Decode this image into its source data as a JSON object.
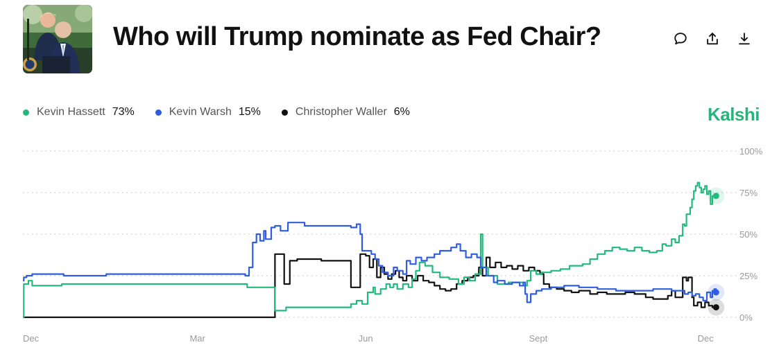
{
  "header": {
    "title": "Who will Trump nominate as Fed Chair?",
    "brand": "Kalshi",
    "actions": [
      {
        "name": "comment-icon"
      },
      {
        "name": "share-icon"
      },
      {
        "name": "download-icon"
      }
    ]
  },
  "legend": [
    {
      "name": "Kevin Hassett",
      "value": "73%",
      "color": "#21b97c"
    },
    {
      "name": "Kevin Warsh",
      "value": "15%",
      "color": "#2f5de0"
    },
    {
      "name": "Christopher Waller",
      "value": "6%",
      "color": "#111111"
    }
  ],
  "chart_data": {
    "type": "line",
    "x_ticks": [
      {
        "label": "Dec",
        "x": 0
      },
      {
        "label": "Mar",
        "x": 90
      },
      {
        "label": "Jun",
        "x": 181
      },
      {
        "label": "Sept",
        "x": 273
      },
      {
        "label": "Dec",
        "x": 364
      }
    ],
    "y_ticks": [
      {
        "label": "100%",
        "y": 100
      },
      {
        "label": "75%",
        "y": 75
      },
      {
        "label": "50%",
        "y": 50
      },
      {
        "label": "25%",
        "y": 25
      },
      {
        "label": "0%",
        "y": 0
      }
    ],
    "xlim": [
      0,
      378
    ],
    "ylim": [
      0,
      100
    ],
    "grid": true,
    "series": [
      {
        "name": "Kevin Hassett",
        "color": "#21b97c",
        "points": [
          [
            0,
            0
          ],
          [
            0.5,
            20
          ],
          [
            3,
            22
          ],
          [
            5,
            19
          ],
          [
            20,
            19
          ],
          [
            21,
            20
          ],
          [
            120,
            20
          ],
          [
            121,
            18
          ],
          [
            135,
            18
          ],
          [
            136,
            4
          ],
          [
            141,
            4
          ],
          [
            142,
            6
          ],
          [
            175,
            6
          ],
          [
            177,
            8
          ],
          [
            180,
            10
          ],
          [
            183,
            8
          ],
          [
            186,
            15
          ],
          [
            189,
            18
          ],
          [
            190,
            14
          ],
          [
            193,
            17
          ],
          [
            196,
            20
          ],
          [
            198,
            18
          ],
          [
            200,
            20
          ],
          [
            202,
            17
          ],
          [
            205,
            20
          ],
          [
            208,
            18
          ],
          [
            210,
            23
          ],
          [
            212,
            28
          ],
          [
            214,
            33
          ],
          [
            217,
            31
          ],
          [
            221,
            27
          ],
          [
            225,
            24
          ],
          [
            230,
            23
          ],
          [
            235,
            20
          ],
          [
            238,
            24
          ],
          [
            241,
            22
          ],
          [
            244,
            26
          ],
          [
            247,
            50
          ],
          [
            248,
            30
          ],
          [
            251,
            25
          ],
          [
            256,
            20
          ],
          [
            262,
            21
          ],
          [
            270,
            19
          ],
          [
            272,
            22
          ],
          [
            274,
            28
          ],
          [
            277,
            26
          ],
          [
            280,
            27
          ],
          [
            285,
            28
          ],
          [
            290,
            29
          ],
          [
            295,
            31
          ],
          [
            302,
            32
          ],
          [
            306,
            35
          ],
          [
            310,
            38
          ],
          [
            314,
            40
          ],
          [
            318,
            42
          ],
          [
            322,
            41
          ],
          [
            326,
            40
          ],
          [
            330,
            42
          ],
          [
            334,
            40
          ],
          [
            338,
            39
          ],
          [
            342,
            40
          ],
          [
            345,
            44
          ],
          [
            347,
            43
          ],
          [
            350,
            47
          ],
          [
            352,
            45
          ],
          [
            354,
            49
          ],
          [
            356,
            56
          ],
          [
            357,
            55
          ],
          [
            358,
            62
          ],
          [
            360,
            66
          ],
          [
            361,
            71
          ],
          [
            362,
            76
          ],
          [
            363,
            79
          ],
          [
            364,
            81
          ],
          [
            365,
            78
          ],
          [
            366,
            75
          ],
          [
            367,
            77
          ],
          [
            368,
            79
          ],
          [
            369,
            74
          ],
          [
            370,
            76
          ],
          [
            371,
            68
          ],
          [
            372,
            73
          ],
          [
            373,
            72
          ],
          [
            374,
            73
          ]
        ]
      },
      {
        "name": "Kevin Warsh",
        "color": "#2f5de0",
        "points": [
          [
            0,
            22
          ],
          [
            0.5,
            24
          ],
          [
            2,
            25
          ],
          [
            5,
            26
          ],
          [
            20,
            26
          ],
          [
            22,
            25
          ],
          [
            40,
            25
          ],
          [
            45,
            26
          ],
          [
            115,
            26
          ],
          [
            120,
            25
          ],
          [
            122,
            30
          ],
          [
            124,
            45
          ],
          [
            126,
            50
          ],
          [
            128,
            46
          ],
          [
            130,
            52
          ],
          [
            131,
            47
          ],
          [
            134,
            54
          ],
          [
            136,
            55
          ],
          [
            139,
            52
          ],
          [
            143,
            57
          ],
          [
            150,
            57
          ],
          [
            152,
            55
          ],
          [
            176,
            55
          ],
          [
            177,
            54
          ],
          [
            180,
            56
          ],
          [
            182,
            50
          ],
          [
            183,
            40
          ],
          [
            186,
            40
          ],
          [
            188,
            38
          ],
          [
            190,
            35
          ],
          [
            192,
            31
          ],
          [
            194,
            27
          ],
          [
            197,
            25
          ],
          [
            200,
            30
          ],
          [
            202,
            28
          ],
          [
            205,
            26
          ],
          [
            207,
            34
          ],
          [
            209,
            32
          ],
          [
            212,
            36
          ],
          [
            215,
            34
          ],
          [
            218,
            36
          ],
          [
            222,
            38
          ],
          [
            225,
            40
          ],
          [
            228,
            40
          ],
          [
            231,
            42
          ],
          [
            234,
            44
          ],
          [
            236,
            40
          ],
          [
            239,
            36
          ],
          [
            242,
            38
          ],
          [
            245,
            36
          ],
          [
            247,
            30
          ],
          [
            250,
            25
          ],
          [
            254,
            21
          ],
          [
            256,
            22
          ],
          [
            260,
            20
          ],
          [
            264,
            21
          ],
          [
            268,
            19
          ],
          [
            270,
            21
          ],
          [
            271,
            14
          ],
          [
            272,
            9
          ],
          [
            274,
            14
          ],
          [
            277,
            16
          ],
          [
            280,
            17
          ],
          [
            285,
            18
          ],
          [
            292,
            19
          ],
          [
            300,
            18
          ],
          [
            310,
            17
          ],
          [
            320,
            16
          ],
          [
            330,
            16
          ],
          [
            340,
            17
          ],
          [
            350,
            16
          ],
          [
            353,
            16
          ],
          [
            357,
            14
          ],
          [
            359,
            15
          ],
          [
            361,
            13
          ],
          [
            363,
            14
          ],
          [
            365,
            12
          ],
          [
            367,
            10
          ],
          [
            369,
            15
          ],
          [
            371,
            12
          ],
          [
            372,
            16
          ],
          [
            373,
            17
          ],
          [
            374,
            15
          ]
        ]
      },
      {
        "name": "Christopher Waller",
        "color": "#111111",
        "points": [
          [
            0,
            0
          ],
          [
            135,
            0
          ],
          [
            136,
            38
          ],
          [
            140,
            38
          ],
          [
            141,
            20
          ],
          [
            143,
            20
          ],
          [
            144,
            34
          ],
          [
            147,
            34
          ],
          [
            148,
            35
          ],
          [
            160,
            35
          ],
          [
            161,
            34
          ],
          [
            175,
            34
          ],
          [
            176,
            34
          ],
          [
            177,
            18
          ],
          [
            181,
            18
          ],
          [
            182,
            38
          ],
          [
            185,
            37
          ],
          [
            187,
            30
          ],
          [
            189,
            35
          ],
          [
            191,
            24
          ],
          [
            193,
            30
          ],
          [
            195,
            26
          ],
          [
            197,
            23
          ],
          [
            199,
            26
          ],
          [
            201,
            28
          ],
          [
            203,
            24
          ],
          [
            205,
            22
          ],
          [
            207,
            25
          ],
          [
            210,
            22
          ],
          [
            213,
            25
          ],
          [
            216,
            22
          ],
          [
            219,
            21
          ],
          [
            222,
            19
          ],
          [
            225,
            17
          ],
          [
            228,
            16
          ],
          [
            231,
            17
          ],
          [
            234,
            20
          ],
          [
            237,
            22
          ],
          [
            240,
            24
          ],
          [
            243,
            25
          ],
          [
            246,
            30
          ],
          [
            248,
            25
          ],
          [
            250,
            36
          ],
          [
            252,
            30
          ],
          [
            255,
            33
          ],
          [
            258,
            30
          ],
          [
            261,
            31
          ],
          [
            264,
            29
          ],
          [
            267,
            31
          ],
          [
            270,
            28
          ],
          [
            273,
            30
          ],
          [
            276,
            28
          ],
          [
            279,
            26
          ],
          [
            281,
            20
          ],
          [
            284,
            18
          ],
          [
            288,
            17
          ],
          [
            292,
            16
          ],
          [
            296,
            15
          ],
          [
            300,
            16
          ],
          [
            306,
            14
          ],
          [
            310,
            15
          ],
          [
            315,
            14
          ],
          [
            320,
            14
          ],
          [
            325,
            15
          ],
          [
            330,
            14
          ],
          [
            333,
            14
          ],
          [
            336,
            12
          ],
          [
            340,
            11
          ],
          [
            344,
            11
          ],
          [
            348,
            13
          ],
          [
            350,
            16
          ],
          [
            352,
            12
          ],
          [
            354,
            12
          ],
          [
            356,
            24
          ],
          [
            358,
            22
          ],
          [
            359,
            24
          ],
          [
            361,
            12
          ],
          [
            362,
            7
          ],
          [
            364,
            9
          ],
          [
            366,
            6
          ],
          [
            368,
            9
          ],
          [
            370,
            7
          ],
          [
            372,
            6
          ],
          [
            374,
            6
          ]
        ]
      }
    ]
  }
}
